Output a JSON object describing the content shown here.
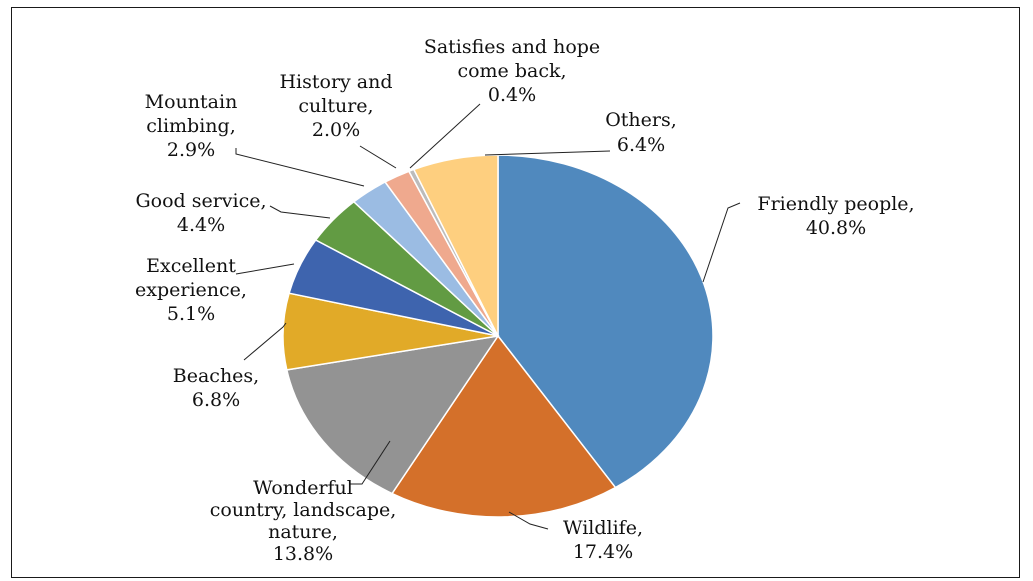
{
  "chart_data": {
    "type": "pie",
    "title": "",
    "start_angle_deg": 0,
    "direction": "clockwise",
    "slices": [
      {
        "lines": [
          "Friendly people,",
          "40.8%"
        ],
        "category": "Friendly people",
        "value": 40.8,
        "color": "#5089BE"
      },
      {
        "lines": [
          "Wildlife,",
          "17.4%"
        ],
        "category": "Wildlife",
        "value": 17.4,
        "color": "#D4702A"
      },
      {
        "lines": [
          "Wonderful",
          "country, landscape,",
          "nature,",
          "13.8%"
        ],
        "category": "Wonderful country, landscape, nature",
        "value": 13.8,
        "color": "#939393"
      },
      {
        "lines": [
          "Beaches,",
          "6.8%"
        ],
        "category": "Beaches",
        "value": 6.8,
        "color": "#E1AA28"
      },
      {
        "lines": [
          "Excellent",
          "experience,",
          "5.1%"
        ],
        "category": "Excellent experience",
        "value": 5.1,
        "color": "#3E64AE"
      },
      {
        "lines": [
          "Good service,",
          "4.4%"
        ],
        "category": "Good service",
        "value": 4.4,
        "color": "#629B43"
      },
      {
        "lines": [
          "Mountain",
          "climbing,",
          "2.9%"
        ],
        "category": "Mountain climbing",
        "value": 2.9,
        "color": "#9BBCE3"
      },
      {
        "lines": [
          "History and",
          "culture,",
          "2.0%"
        ],
        "category": "History and culture",
        "value": 2.0,
        "color": "#EFA98E"
      },
      {
        "lines": [
          "Satisfies and hope",
          "come back,",
          "0.4%"
        ],
        "category": "Satisfies and hope come back",
        "value": 0.4,
        "color": "#BCBCBC"
      },
      {
        "lines": [
          "Others,",
          "6.4%"
        ],
        "category": "Others",
        "value": 6.4,
        "color": "#FECF7F"
      }
    ]
  }
}
